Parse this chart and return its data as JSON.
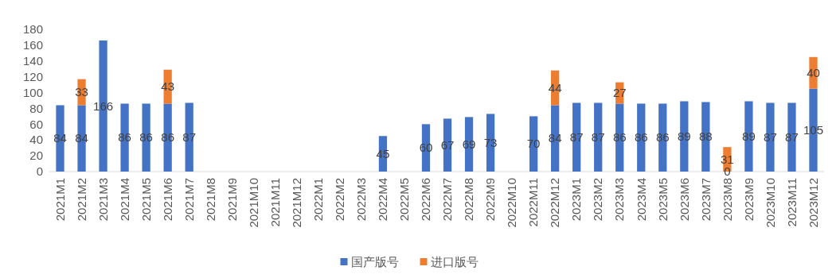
{
  "chart_data": {
    "type": "bar",
    "stacked": true,
    "categories": [
      "2021M1",
      "2021M2",
      "2021M3",
      "2021M4",
      "2021M5",
      "2021M6",
      "2021M7",
      "2021M8",
      "2021M9",
      "2021M10",
      "2021M11",
      "2021M12",
      "2022M1",
      "2022M2",
      "2022M3",
      "2022M4",
      "2022M5",
      "2022M6",
      "2022M7",
      "2022M8",
      "2022M9",
      "2022M10",
      "2022M11",
      "2022M12",
      "2023M1",
      "2023M2",
      "2023M3",
      "2023M4",
      "2023M5",
      "2023M6",
      "2023M7",
      "2023M8",
      "2023M9",
      "2023M10",
      "2023M11",
      "2023M12"
    ],
    "series": [
      {
        "name": "国产版号",
        "color": "#4472c4",
        "values": [
          84,
          84,
          166,
          86,
          86,
          86,
          87,
          null,
          null,
          null,
          null,
          null,
          null,
          null,
          null,
          45,
          null,
          60,
          67,
          69,
          73,
          null,
          70,
          84,
          87,
          87,
          86,
          86,
          86,
          89,
          88,
          0,
          89,
          87,
          87,
          105
        ]
      },
      {
        "name": "进口版号",
        "color": "#ed7d31",
        "values": [
          null,
          33,
          null,
          null,
          null,
          43,
          null,
          null,
          null,
          null,
          null,
          null,
          null,
          null,
          null,
          null,
          null,
          null,
          null,
          null,
          null,
          null,
          null,
          44,
          null,
          null,
          27,
          null,
          null,
          null,
          null,
          31,
          null,
          null,
          null,
          40
        ]
      }
    ],
    "ylim": [
      0,
      180
    ],
    "yticks": [
      0,
      20,
      40,
      60,
      80,
      100,
      120,
      140,
      160,
      180
    ],
    "grid": false,
    "legend": "bottom",
    "data_labels": true
  }
}
